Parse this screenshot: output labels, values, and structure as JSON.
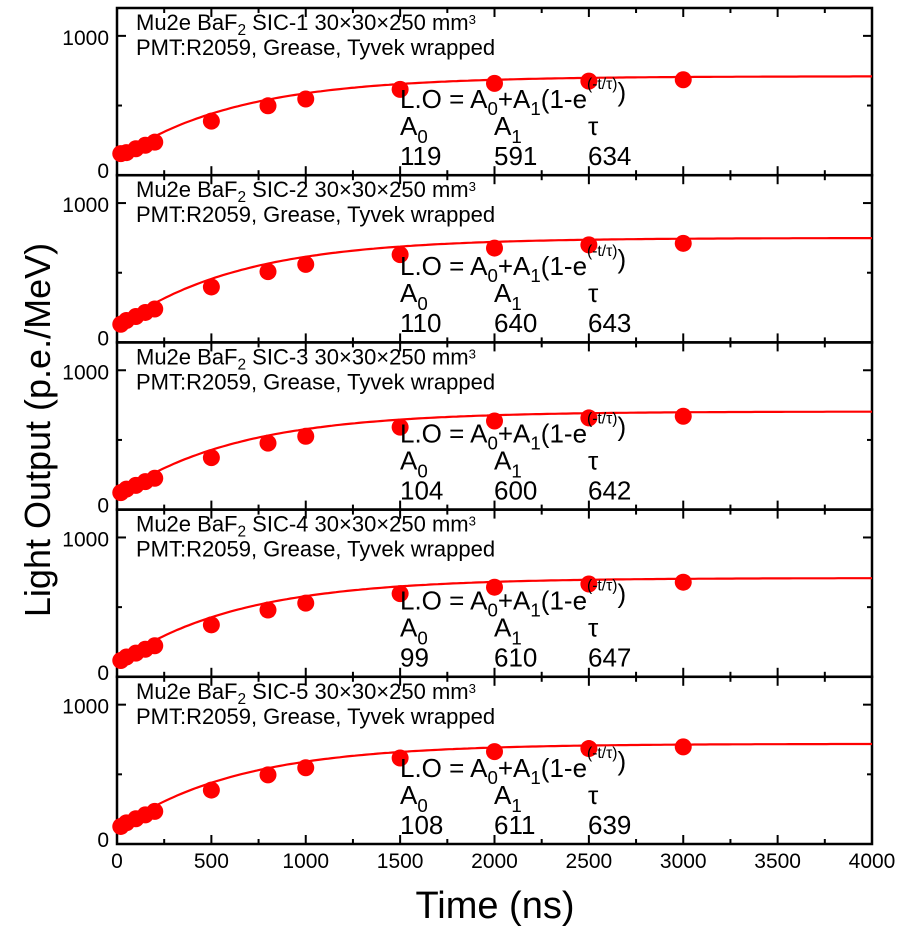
{
  "figure": {
    "ylabel": "Light Output (p.e./MeV)",
    "xlabel": "Time (ns)",
    "x_ticks": [
      "0",
      "500",
      "1000",
      "1500",
      "2000",
      "2500",
      "3000",
      "3500",
      "4000"
    ],
    "y_ticks": [
      "0",
      "1000"
    ],
    "fit_equation": "L.O = A₀+A₁(1-e^(-t/τ))",
    "param_labels": [
      "A₀",
      "A₁",
      "τ"
    ],
    "colors": {
      "series": "#ff0000",
      "axes": "#000000"
    }
  },
  "chart_data": [
    {
      "type": "scatter",
      "title": "Mu2e BaF2 SIC-1  30×30×250 mm3",
      "subtitle": "PMT:R2059, Grease, Tyvek wrapped",
      "x": [
        20,
        50,
        100,
        150,
        200,
        500,
        800,
        1000,
        1500,
        2000,
        2500,
        3000
      ],
      "y": [
        155,
        162,
        190,
        215,
        237,
        388,
        498,
        547,
        616,
        659,
        675,
        685
      ],
      "fit": {
        "A0": "119",
        "A1": "591",
        "tau": "634"
      },
      "xlim": [
        0,
        4000
      ],
      "ylim": [
        0,
        1200
      ]
    },
    {
      "type": "scatter",
      "title": "Mu2e BaF2 SIC-2  30×30×250 mm3",
      "subtitle": "PMT:R2059, Grease, Tyvek wrapped",
      "x": [
        20,
        50,
        100,
        150,
        200,
        500,
        800,
        1000,
        1500,
        2000,
        2500,
        3000
      ],
      "y": [
        130,
        157,
        186,
        215,
        240,
        398,
        508,
        560,
        630,
        677,
        700,
        711
      ],
      "fit": {
        "A0": "110",
        "A1": "640",
        "tau": "643"
      },
      "xlim": [
        0,
        4000
      ],
      "ylim": [
        0,
        1200
      ]
    },
    {
      "type": "scatter",
      "title": "Mu2e BaF2 SIC-3  30×30×250 mm3",
      "subtitle": "PMT:R2059, Grease, Tyvek wrapped",
      "x": [
        20,
        50,
        100,
        150,
        200,
        500,
        800,
        1000,
        1500,
        2000,
        2500,
        3000
      ],
      "y": [
        122,
        147,
        174,
        201,
        225,
        373,
        477,
        526,
        592,
        636,
        658,
        670
      ],
      "fit": {
        "A0": "104",
        "A1": "600",
        "tau": "642"
      },
      "xlim": [
        0,
        4000
      ],
      "ylim": [
        0,
        1200
      ]
    },
    {
      "type": "scatter",
      "title": "Mu2e BaF2 SIC-4  30×30×250 mm3",
      "subtitle": "PMT:R2059, Grease, Tyvek wrapped",
      "x": [
        20,
        50,
        100,
        150,
        200,
        500,
        800,
        1000,
        1500,
        2000,
        2500,
        3000
      ],
      "y": [
        117,
        142,
        170,
        198,
        223,
        373,
        479,
        529,
        597,
        643,
        666,
        679
      ],
      "fit": {
        "A0": "99",
        "A1": "610",
        "tau": "647"
      },
      "xlim": [
        0,
        4000
      ],
      "ylim": [
        0,
        1200
      ]
    },
    {
      "type": "scatter",
      "title": "Mu2e BaF2 SIC-5  30×30×250 mm3",
      "subtitle": "PMT:R2059, Grease, Tyvek wrapped",
      "x": [
        20,
        50,
        100,
        150,
        200,
        500,
        800,
        1000,
        1500,
        2000,
        2500,
        3000
      ],
      "y": [
        126,
        152,
        181,
        209,
        234,
        387,
        496,
        547,
        617,
        663,
        685,
        697
      ],
      "fit": {
        "A0": "108",
        "A1": "611",
        "tau": "639"
      },
      "xlim": [
        0,
        4000
      ],
      "ylim": [
        0,
        1200
      ]
    }
  ]
}
